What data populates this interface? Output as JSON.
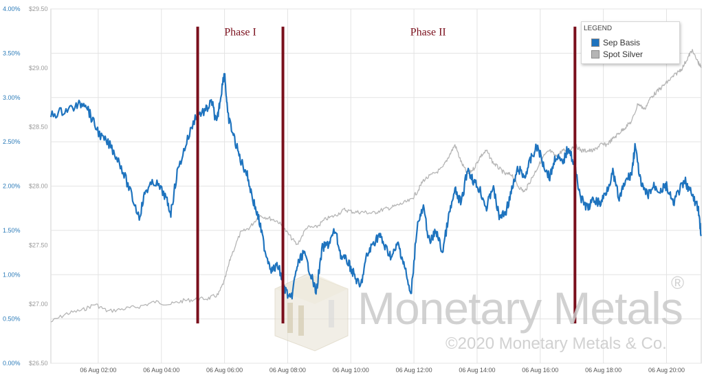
{
  "chart_data": {
    "type": "line",
    "x_labels": [
      "06 Aug 02:00",
      "06 Aug 04:00",
      "06 Aug 06:00",
      "06 Aug 08:00",
      "06 Aug 10:00",
      "06 Aug 12:00",
      "06 Aug 14:00",
      "06 Aug 16:00",
      "06 Aug 18:00",
      "06 Aug 20:00"
    ],
    "x_start_hour": 0.5,
    "x_end_hour": 21.1,
    "y_left": {
      "ticks": [
        "0.00%",
        "0.50%",
        "1.00%",
        "1.50%",
        "2.00%",
        "2.50%",
        "3.00%",
        "3.50%",
        "4.00%"
      ],
      "lim": [
        0,
        4.0
      ]
    },
    "y_right": {
      "ticks": [
        "$26.50",
        "$27.00",
        "$27.50",
        "$28.00",
        "$28.50",
        "$29.00",
        "$29.50"
      ],
      "lim": [
        26.5,
        29.5
      ]
    },
    "grid": true,
    "legend_placement": "top-right",
    "legend": {
      "title": "LEGEND"
    },
    "series": [
      {
        "name": "Sep Basis",
        "axis": "left",
        "color": "#1e73be",
        "points": [
          [
            0.5,
            2.8
          ],
          [
            0.9,
            2.85
          ],
          [
            1.3,
            2.9
          ],
          [
            1.6,
            2.95
          ],
          [
            1.8,
            2.75
          ],
          [
            2.1,
            2.55
          ],
          [
            2.4,
            2.45
          ],
          [
            2.7,
            2.25
          ],
          [
            3.0,
            1.95
          ],
          [
            3.3,
            1.65
          ],
          [
            3.5,
            1.95
          ],
          [
            3.8,
            2.05
          ],
          [
            4.1,
            1.9
          ],
          [
            4.3,
            1.7
          ],
          [
            4.5,
            2.15
          ],
          [
            4.8,
            2.5
          ],
          [
            5.1,
            2.8
          ],
          [
            5.4,
            2.85
          ],
          [
            5.6,
            2.95
          ],
          [
            5.75,
            2.7
          ],
          [
            5.85,
            2.95
          ],
          [
            6.0,
            3.3
          ],
          [
            6.1,
            2.8
          ],
          [
            6.3,
            2.55
          ],
          [
            6.5,
            2.3
          ],
          [
            6.7,
            2.15
          ],
          [
            6.9,
            1.85
          ],
          [
            7.1,
            1.6
          ],
          [
            7.3,
            1.25
          ],
          [
            7.5,
            1.05
          ],
          [
            7.7,
            1.1
          ],
          [
            7.9,
            0.85
          ],
          [
            8.1,
            0.7
          ],
          [
            8.3,
            1.1
          ],
          [
            8.5,
            1.25
          ],
          [
            8.7,
            1.05
          ],
          [
            8.9,
            0.8
          ],
          [
            9.1,
            1.3
          ],
          [
            9.3,
            1.35
          ],
          [
            9.5,
            1.5
          ],
          [
            9.7,
            1.2
          ],
          [
            9.9,
            1.15
          ],
          [
            10.1,
            1.0
          ],
          [
            10.3,
            0.85
          ],
          [
            10.5,
            1.2
          ],
          [
            10.7,
            1.35
          ],
          [
            10.9,
            1.45
          ],
          [
            11.1,
            1.3
          ],
          [
            11.3,
            1.2
          ],
          [
            11.5,
            1.35
          ],
          [
            11.7,
            1.1
          ],
          [
            11.9,
            0.75
          ],
          [
            12.1,
            1.55
          ],
          [
            12.3,
            1.75
          ],
          [
            12.5,
            1.35
          ],
          [
            12.7,
            1.5
          ],
          [
            12.9,
            1.25
          ],
          [
            13.1,
            1.65
          ],
          [
            13.3,
            1.95
          ],
          [
            13.5,
            1.8
          ],
          [
            13.7,
            2.2
          ],
          [
            13.9,
            2.05
          ],
          [
            14.1,
            1.95
          ],
          [
            14.3,
            1.75
          ],
          [
            14.5,
            2.0
          ],
          [
            14.7,
            1.65
          ],
          [
            14.9,
            1.7
          ],
          [
            15.1,
            1.95
          ],
          [
            15.3,
            2.2
          ],
          [
            15.5,
            2.1
          ],
          [
            15.7,
            2.3
          ],
          [
            15.9,
            2.45
          ],
          [
            16.1,
            2.25
          ],
          [
            16.3,
            2.1
          ],
          [
            16.5,
            2.35
          ],
          [
            16.7,
            2.25
          ],
          [
            16.9,
            2.45
          ],
          [
            17.1,
            2.2
          ],
          [
            17.3,
            1.85
          ],
          [
            17.5,
            1.75
          ],
          [
            17.7,
            1.85
          ],
          [
            17.9,
            1.8
          ],
          [
            18.1,
            1.95
          ],
          [
            18.3,
            2.15
          ],
          [
            18.5,
            1.85
          ],
          [
            18.7,
            2.05
          ],
          [
            18.9,
            2.15
          ],
          [
            19.0,
            2.45
          ],
          [
            19.2,
            2.0
          ],
          [
            19.4,
            1.9
          ],
          [
            19.6,
            2.0
          ],
          [
            19.8,
            1.95
          ],
          [
            20.0,
            2.0
          ],
          [
            20.2,
            1.8
          ],
          [
            20.4,
            1.95
          ],
          [
            20.6,
            2.05
          ],
          [
            20.8,
            1.9
          ],
          [
            21.0,
            1.75
          ],
          [
            21.1,
            1.45
          ]
        ]
      },
      {
        "name": "Spot Silver",
        "axis": "right",
        "color": "#b5b5b5",
        "points": [
          [
            0.5,
            26.85
          ],
          [
            1.0,
            26.92
          ],
          [
            1.5,
            26.95
          ],
          [
            1.9,
            27.0
          ],
          [
            2.3,
            26.94
          ],
          [
            2.8,
            26.96
          ],
          [
            3.3,
            26.98
          ],
          [
            3.8,
            27.02
          ],
          [
            4.3,
            27.0
          ],
          [
            4.7,
            27.03
          ],
          [
            5.1,
            27.04
          ],
          [
            5.5,
            27.05
          ],
          [
            5.8,
            27.08
          ],
          [
            6.0,
            27.2
          ],
          [
            6.2,
            27.4
          ],
          [
            6.5,
            27.6
          ],
          [
            6.8,
            27.65
          ],
          [
            7.1,
            27.75
          ],
          [
            7.4,
            27.73
          ],
          [
            7.7,
            27.7
          ],
          [
            8.0,
            27.6
          ],
          [
            8.3,
            27.5
          ],
          [
            8.6,
            27.65
          ],
          [
            8.9,
            27.65
          ],
          [
            9.2,
            27.72
          ],
          [
            9.5,
            27.75
          ],
          [
            9.8,
            27.8
          ],
          [
            10.1,
            27.78
          ],
          [
            10.4,
            27.78
          ],
          [
            10.7,
            27.77
          ],
          [
            11.0,
            27.8
          ],
          [
            11.3,
            27.82
          ],
          [
            11.6,
            27.85
          ],
          [
            11.9,
            27.88
          ],
          [
            12.1,
            27.95
          ],
          [
            12.3,
            28.05
          ],
          [
            12.6,
            28.1
          ],
          [
            12.9,
            28.15
          ],
          [
            13.1,
            28.25
          ],
          [
            13.3,
            28.35
          ],
          [
            13.5,
            28.2
          ],
          [
            13.7,
            28.1
          ],
          [
            13.9,
            28.15
          ],
          [
            14.1,
            28.25
          ],
          [
            14.3,
            28.3
          ],
          [
            14.5,
            28.2
          ],
          [
            14.7,
            28.15
          ],
          [
            14.9,
            28.1
          ],
          [
            15.1,
            28.1
          ],
          [
            15.3,
            28.0
          ],
          [
            15.5,
            27.95
          ],
          [
            15.7,
            28.05
          ],
          [
            15.9,
            28.15
          ],
          [
            16.1,
            28.25
          ],
          [
            16.3,
            28.3
          ],
          [
            16.5,
            28.25
          ],
          [
            16.7,
            28.3
          ],
          [
            16.9,
            28.3
          ],
          [
            17.1,
            28.35
          ],
          [
            17.3,
            28.3
          ],
          [
            17.5,
            28.3
          ],
          [
            17.7,
            28.3
          ],
          [
            17.9,
            28.35
          ],
          [
            18.1,
            28.35
          ],
          [
            18.3,
            28.4
          ],
          [
            18.5,
            28.45
          ],
          [
            18.7,
            28.5
          ],
          [
            18.9,
            28.55
          ],
          [
            19.1,
            28.7
          ],
          [
            19.3,
            28.65
          ],
          [
            19.5,
            28.75
          ],
          [
            19.7,
            28.8
          ],
          [
            19.9,
            28.85
          ],
          [
            20.1,
            28.9
          ],
          [
            20.3,
            28.95
          ],
          [
            20.5,
            29.0
          ],
          [
            20.7,
            29.1
          ],
          [
            20.8,
            29.15
          ],
          [
            21.0,
            29.05
          ],
          [
            21.1,
            29.0
          ]
        ]
      }
    ],
    "annotations": [
      {
        "type": "vline",
        "x": 5.15,
        "from_pct": 0.45,
        "to_pct": 3.8,
        "color": "#7a0f1c"
      },
      {
        "type": "vline",
        "x": 7.85,
        "from_pct": 0.45,
        "to_pct": 3.8,
        "color": "#7a0f1c"
      },
      {
        "type": "vline",
        "x": 17.1,
        "from_pct": 0.45,
        "to_pct": 3.8,
        "color": "#7a0f1c"
      },
      {
        "type": "text",
        "text": "Phase I",
        "x_center": 6.5,
        "y_pct": 3.7
      },
      {
        "type": "text",
        "text": "Phase II",
        "x_center": 12.45,
        "y_pct": 3.7
      }
    ]
  },
  "watermark": {
    "name": "Monetary Metals",
    "copyright": "©2020 Monetary Metals & Co.",
    "registered": "®"
  }
}
